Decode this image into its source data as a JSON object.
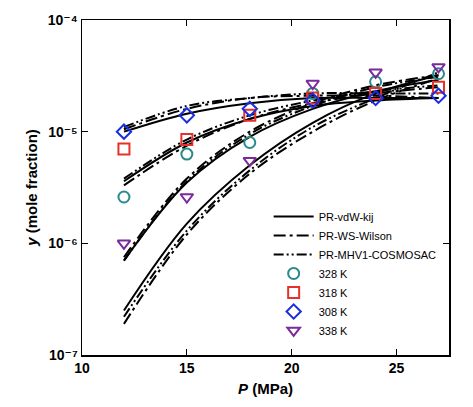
{
  "chart_data": {
    "type": "scatter",
    "x_label": "P (MPa)",
    "y_label": "y (mole fraction)",
    "log": "y",
    "grid": false,
    "legend": "lower right",
    "xlim": [
      10,
      27.5
    ],
    "xticks": [
      10,
      15,
      20,
      25
    ],
    "ylim": [
      1e-07,
      0.0001
    ],
    "yticks": [
      {
        "value": 1e-07,
        "label": "10⁻⁷"
      },
      {
        "value": 1e-06,
        "label": "10⁻⁶"
      },
      {
        "value": 1e-05,
        "label": "10⁻⁵"
      },
      {
        "value": 0.0001,
        "label": "10⁻⁴"
      }
    ],
    "series": [
      {
        "name": "PR-vdW-kij",
        "type": "line",
        "line_style": "solid",
        "color": "#000000",
        "x": [
          12,
          15,
          18,
          21,
          24,
          27
        ],
        "values": [
          1e-05,
          1.45e-05,
          1.8e-05,
          2e-05,
          2e-05,
          2e-05
        ]
      },
      {
        "name": "PR-vdW-kij",
        "type": "line",
        "line_style": "solid",
        "color": "#000000",
        "x": [
          12,
          15,
          18,
          21,
          24,
          27
        ],
        "values": [
          3.6e-06,
          8e-06,
          1.3e-05,
          1.7e-05,
          1.9e-05,
          2e-05
        ]
      },
      {
        "name": "PR-vdW-kij",
        "type": "line",
        "line_style": "solid",
        "color": "#000000",
        "x": [
          12,
          15,
          18,
          21,
          24,
          27
        ],
        "values": [
          7e-07,
          3.5e-06,
          9e-06,
          1.6e-05,
          2.3e-05,
          2.9e-05
        ]
      },
      {
        "name": "PR-vdW-kij",
        "type": "line",
        "line_style": "solid",
        "color": "#000000",
        "x": [
          12,
          15,
          18,
          21,
          24,
          27
        ],
        "values": [
          2.5e-07,
          1.5e-06,
          5e-06,
          1.2e-05,
          2.2e-05,
          3.2e-05
        ]
      },
      {
        "name": "PR-WS-Wilson",
        "type": "line",
        "line_style": "dashdot",
        "color": "#000000",
        "x": [
          12,
          15,
          18,
          21,
          24,
          27
        ],
        "values": [
          1.05e-05,
          1.6e-05,
          2e-05,
          2.1e-05,
          2.1e-05,
          2e-05
        ]
      },
      {
        "name": "PR-WS-Wilson",
        "type": "line",
        "line_style": "dashdot",
        "color": "#000000",
        "x": [
          12,
          15,
          18,
          21,
          24,
          27
        ],
        "values": [
          3.3e-06,
          7.5e-06,
          1.3e-05,
          1.8e-05,
          2.2e-05,
          2.5e-05
        ]
      },
      {
        "name": "PR-WS-Wilson",
        "type": "line",
        "line_style": "dashdot",
        "color": "#000000",
        "x": [
          12,
          15,
          18,
          21,
          24,
          27
        ],
        "values": [
          7.5e-07,
          3.8e-06,
          1e-05,
          1.8e-05,
          2.6e-05,
          3.2e-05
        ]
      },
      {
        "name": "PR-WS-Wilson",
        "type": "line",
        "line_style": "dashdot",
        "color": "#000000",
        "x": [
          12,
          15,
          18,
          21,
          24,
          27
        ],
        "values": [
          1.9e-07,
          1.2e-06,
          4.2e-06,
          1e-05,
          1.9e-05,
          3e-05
        ]
      },
      {
        "name": "PR-MHV1-COSMOSAC",
        "type": "line",
        "line_style": "dashdotdot",
        "color": "#000000",
        "x": [
          12,
          15,
          18,
          21,
          24,
          27
        ],
        "values": [
          1.1e-05,
          1.7e-05,
          2e-05,
          2.2e-05,
          2.2e-05,
          2.2e-05
        ]
      },
      {
        "name": "PR-MHV1-COSMOSAC",
        "type": "line",
        "line_style": "dashdotdot",
        "color": "#000000",
        "x": [
          12,
          15,
          18,
          21,
          24,
          27
        ],
        "values": [
          3.8e-06,
          8.5e-06,
          1.4e-05,
          1.9e-05,
          2.3e-05,
          2.6e-05
        ]
      },
      {
        "name": "PR-MHV1-COSMOSAC",
        "type": "line",
        "line_style": "dashdotdot",
        "color": "#000000",
        "x": [
          12,
          15,
          18,
          21,
          24,
          27
        ],
        "values": [
          7e-07,
          3.6e-06,
          9.5e-06,
          1.7e-05,
          2.5e-05,
          3.1e-05
        ]
      },
      {
        "name": "PR-MHV1-COSMOSAC",
        "type": "line",
        "line_style": "dashdotdot",
        "color": "#000000",
        "x": [
          12,
          15,
          18,
          21,
          24,
          27
        ],
        "values": [
          2.2e-07,
          1.3e-06,
          4.5e-06,
          1.1e-05,
          2e-05,
          3.4e-05
        ]
      },
      {
        "name": "328 K",
        "type": "scatter",
        "marker": "circle",
        "color": "#2a8a8a",
        "x": [
          12,
          15,
          18,
          21,
          24,
          27
        ],
        "values": [
          2.6e-06,
          6.3e-06,
          8e-06,
          2.2e-05,
          2.8e-05,
          3.3e-05
        ]
      },
      {
        "name": "318 K",
        "type": "scatter",
        "marker": "square",
        "color": "#e8302a",
        "x": [
          12,
          15,
          18,
          21,
          24,
          27
        ],
        "values": [
          7e-06,
          8.5e-06,
          1.4e-05,
          2e-05,
          2.2e-05,
          2.5e-05
        ]
      },
      {
        "name": "308 K",
        "type": "scatter",
        "marker": "diamond",
        "color": "#1a2ee0",
        "x": [
          12,
          15,
          18,
          21,
          24,
          27
        ],
        "values": [
          1e-05,
          1.4e-05,
          1.6e-05,
          1.9e-05,
          2e-05,
          2.1e-05
        ]
      },
      {
        "name": "338 K",
        "type": "scatter",
        "marker": "triangle-down",
        "color": "#7a2a9a",
        "x": [
          12,
          15,
          18,
          21,
          24,
          27
        ],
        "values": [
          1e-06,
          2.6e-06,
          5.5e-06,
          2.7e-05,
          3.4e-05,
          3.8e-05
        ]
      }
    ]
  }
}
